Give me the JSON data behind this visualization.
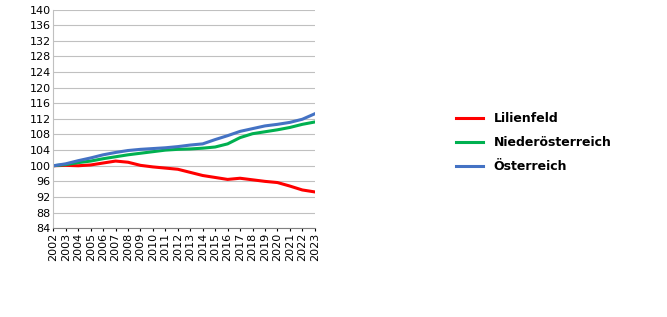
{
  "years": [
    2002,
    2003,
    2004,
    2005,
    2006,
    2007,
    2008,
    2009,
    2010,
    2011,
    2012,
    2013,
    2014,
    2015,
    2016,
    2017,
    2018,
    2019,
    2020,
    2021,
    2022,
    2023
  ],
  "lilienfeld": [
    100.0,
    100.1,
    100.0,
    100.2,
    100.7,
    101.2,
    100.9,
    100.1,
    99.7,
    99.4,
    99.1,
    98.3,
    97.5,
    97.0,
    96.5,
    96.8,
    96.4,
    96.0,
    95.7,
    94.8,
    93.8,
    93.3
  ],
  "niederoesterreich": [
    100.0,
    100.3,
    100.8,
    101.2,
    101.8,
    102.3,
    102.8,
    103.2,
    103.6,
    104.0,
    104.2,
    104.3,
    104.5,
    104.8,
    105.6,
    107.2,
    108.2,
    108.7,
    109.2,
    109.8,
    110.6,
    111.2
  ],
  "oesterreich": [
    100.0,
    100.5,
    101.3,
    102.0,
    102.8,
    103.4,
    103.9,
    104.2,
    104.4,
    104.6,
    104.9,
    105.3,
    105.6,
    106.7,
    107.7,
    108.8,
    109.5,
    110.2,
    110.6,
    111.1,
    111.9,
    113.3
  ],
  "lilienfeld_color": "#ff0000",
  "niederoesterreich_color": "#00b050",
  "oesterreich_color": "#4472c4",
  "line_width": 2.2,
  "ylim": [
    84,
    140
  ],
  "yticks": [
    84,
    88,
    92,
    96,
    100,
    104,
    108,
    112,
    116,
    120,
    124,
    128,
    132,
    136,
    140
  ],
  "legend_labels": [
    "Lilienfeld",
    "Niederösterreich",
    "Österreich"
  ],
  "background_color": "#ffffff",
  "grid_color": "#c0c0c0",
  "tick_fontsize": 8,
  "legend_fontsize": 9
}
